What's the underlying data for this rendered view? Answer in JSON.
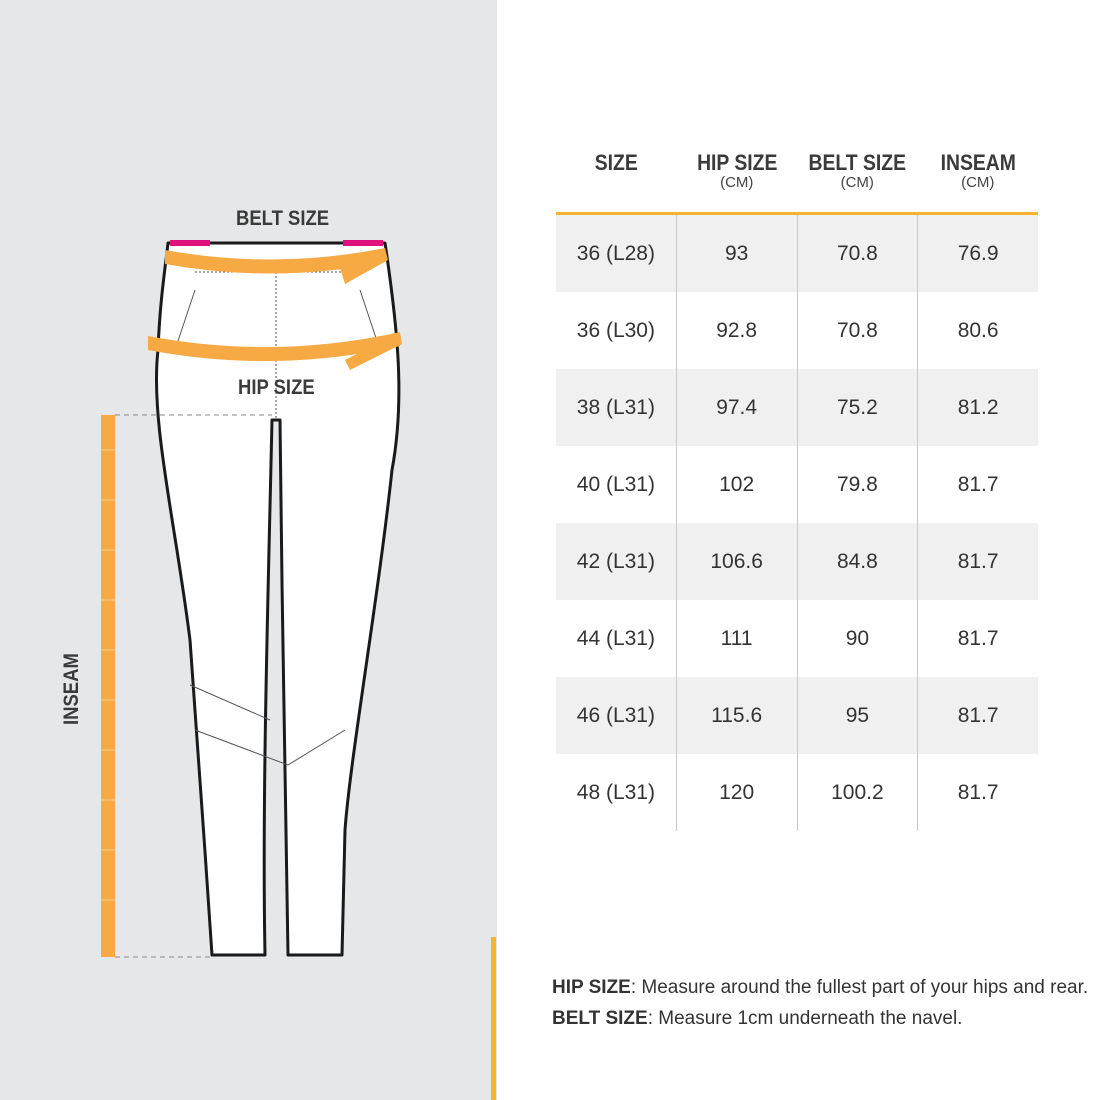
{
  "diagram": {
    "belt_label": "BELT SIZE",
    "hip_label": "HIP SIZE",
    "inseam_label": "INSEAM"
  },
  "table": {
    "headers": [
      {
        "title": "SIZE",
        "unit": ""
      },
      {
        "title": "HIP SIZE",
        "unit": "(CM)"
      },
      {
        "title": "BELT SIZE",
        "unit": "(CM)"
      },
      {
        "title": "INSEAM",
        "unit": "(CM)"
      }
    ],
    "rows": [
      [
        "36 (L28)",
        "93",
        "70.8",
        "76.9"
      ],
      [
        "36 (L30)",
        "92.8",
        "70.8",
        "80.6"
      ],
      [
        "38 (L31)",
        "97.4",
        "75.2",
        "81.2"
      ],
      [
        "40 (L31)",
        "102",
        "79.8",
        "81.7"
      ],
      [
        "42 (L31)",
        "106.6",
        "84.8",
        "81.7"
      ],
      [
        "44 (L31)",
        "111",
        "90",
        "81.7"
      ],
      [
        "46 (L31)",
        "115.6",
        "95",
        "81.7"
      ],
      [
        "48 (L31)",
        "120",
        "100.2",
        "81.7"
      ]
    ]
  },
  "notes": [
    {
      "term": "HIP SIZE",
      "text": ": Measure around the fullest part of your hips and rear."
    },
    {
      "term": "BELT SIZE",
      "text": ": Measure 1cm underneath the navel."
    }
  ],
  "colors": {
    "accent": "#f5b335",
    "panel": "#e6e7e8",
    "tape": "#f7a944",
    "waistband": "#e0117f"
  }
}
